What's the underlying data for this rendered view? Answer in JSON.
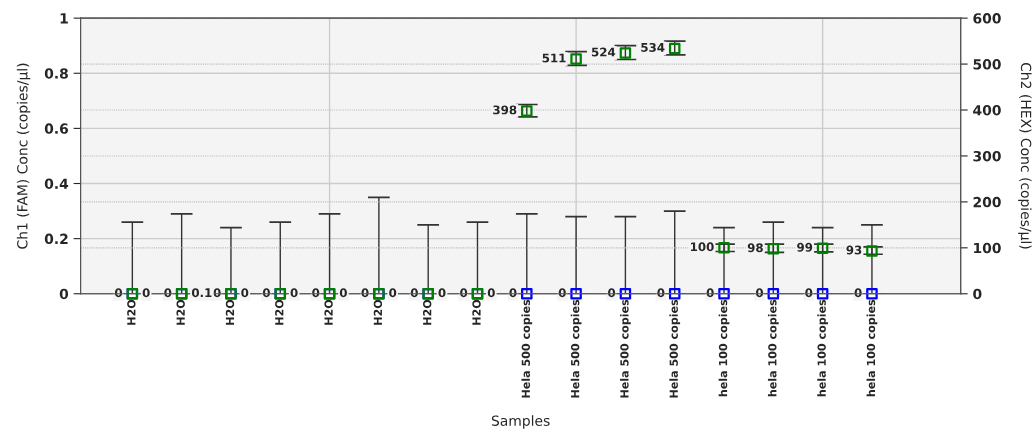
{
  "chart_data": {
    "type": "scatter",
    "xlabel": "Samples",
    "ylabel": "Ch1 (FAM) Conc (copies/µl)",
    "y2label": "Ch2 (HEX) Conc (copies/µl)",
    "categories": [
      "H2O",
      "H2O",
      "H2O",
      "H2O",
      "H2O",
      "H2O",
      "H2O",
      "H2O",
      "Hela 500 copies",
      "Hela 500 copies",
      "Hela 500 copies",
      "Hela 500 copies",
      "hela 100 copies",
      "hela 100 copies",
      "hela 100 copies",
      "hela 100 copies"
    ],
    "series": [
      {
        "color": "#0000ff",
        "values": [
          0,
          0,
          0,
          0,
          0,
          0,
          0,
          0,
          0,
          0,
          0,
          0,
          0,
          0,
          0,
          0
        ],
        "errors": [
          [
            0,
            0.26
          ],
          [
            0,
            0.29
          ],
          [
            0,
            0.24
          ],
          [
            0,
            0.26
          ],
          [
            0,
            0.29
          ],
          [
            0,
            0.35
          ],
          [
            0,
            0.25
          ],
          [
            0,
            0.26
          ],
          [
            0,
            0.29
          ],
          [
            0,
            0.28
          ],
          [
            0,
            0.28
          ],
          [
            0,
            0.3
          ],
          [
            0,
            0.24
          ],
          [
            0,
            0.26
          ],
          [
            0,
            0.24
          ],
          [
            0,
            0.25
          ]
        ]
      },
      {
        "color": "#008000",
        "axis": "y2",
        "values": [
          0,
          0.1,
          0,
          0,
          0,
          0,
          0,
          0,
          398,
          511,
          524,
          534,
          100,
          98,
          99,
          93
        ],
        "errors": [
          null,
          null,
          null,
          null,
          null,
          null,
          null,
          null,
          [
            385,
            412
          ],
          [
            497,
            527
          ],
          [
            510,
            540
          ],
          [
            520,
            550
          ],
          [
            92,
            108
          ],
          [
            90,
            108
          ],
          [
            91,
            108
          ],
          [
            86,
            102
          ]
        ]
      }
    ],
    "data_labels": true,
    "marker": "square",
    "ylim": [
      0,
      1
    ],
    "yticks": [
      0,
      0.2,
      0.4,
      0.6,
      0.8,
      1
    ],
    "y2lim": [
      0,
      600
    ],
    "y2ticks": [
      0,
      100,
      200,
      300,
      400,
      500,
      600
    ],
    "grid": true,
    "legend": false
  }
}
